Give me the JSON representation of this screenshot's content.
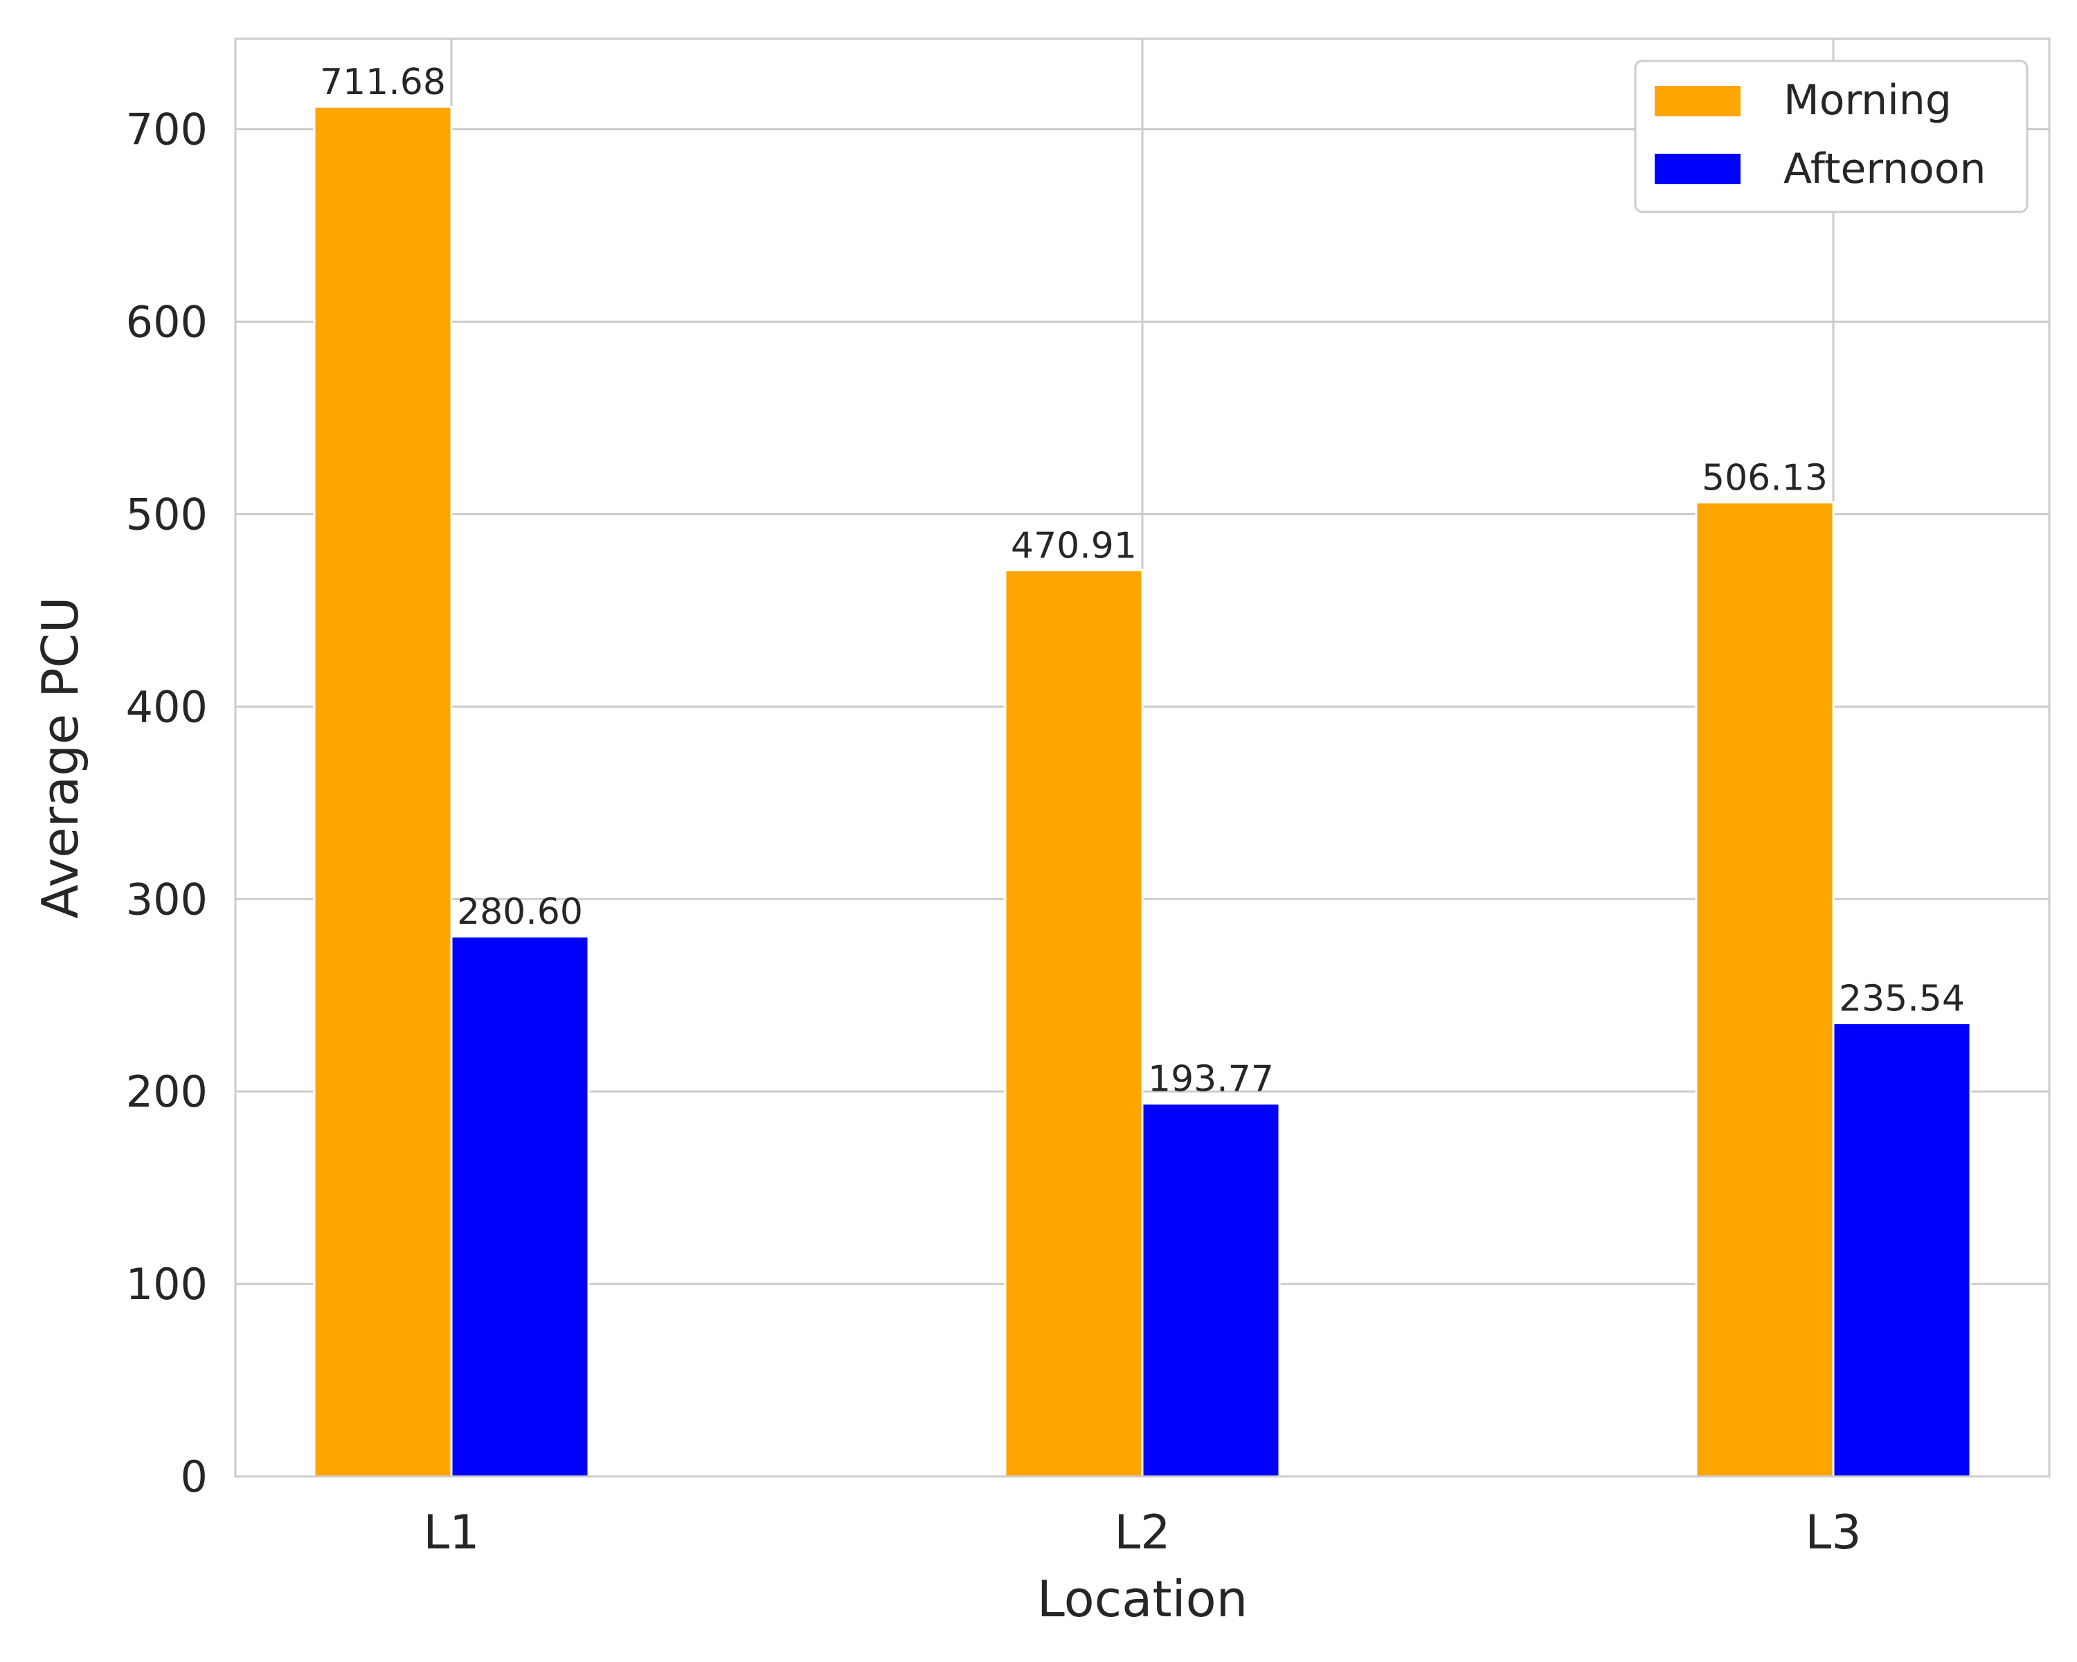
{
  "chart_data": {
    "type": "bar",
    "title": "",
    "xlabel": "Location",
    "ylabel": "Average PCU",
    "categories": [
      "L1",
      "L2",
      "L3"
    ],
    "series": [
      {
        "name": "Morning",
        "values": [
          711.68,
          470.91,
          506.13
        ],
        "color": "#FFA500"
      },
      {
        "name": "Afternoon",
        "values": [
          280.6,
          193.77,
          235.54
        ],
        "color": "#0000FF"
      }
    ],
    "data_labels": [
      [
        "711.68",
        "470.91",
        "506.13"
      ],
      [
        "280.60",
        "193.77",
        "235.54"
      ]
    ],
    "ylim": [
      0,
      747
    ],
    "yticks": [
      0,
      100,
      200,
      300,
      400,
      500,
      600,
      700
    ],
    "grid": true,
    "legend_position": "top-right"
  }
}
